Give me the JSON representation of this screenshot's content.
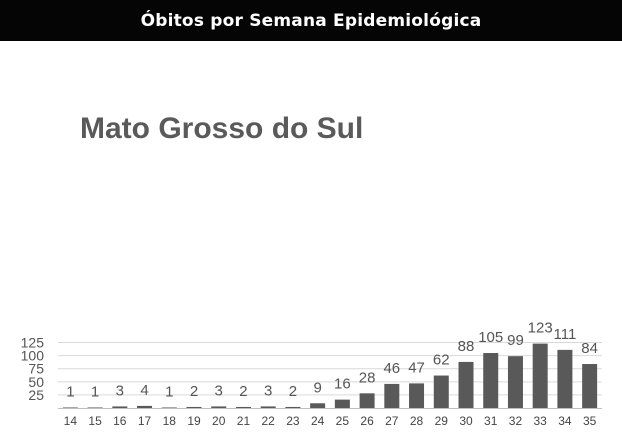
{
  "header": {
    "title": "Óbitos por Semana Epidemiológica"
  },
  "chart_data": {
    "type": "bar",
    "annotation": "Mato Grosso do Sul",
    "categories": [
      "14",
      "15",
      "16",
      "17",
      "18",
      "19",
      "20",
      "21",
      "22",
      "23",
      "24",
      "25",
      "26",
      "27",
      "28",
      "29",
      "30",
      "31",
      "32",
      "33",
      "34",
      "35"
    ],
    "values": [
      1,
      1,
      3,
      4,
      1,
      2,
      3,
      2,
      3,
      2,
      9,
      16,
      28,
      46,
      47,
      62,
      88,
      105,
      99,
      123,
      111,
      84
    ],
    "yticks": [
      25,
      50,
      75,
      100,
      125
    ],
    "ylim": [
      0,
      130
    ],
    "grid": true,
    "colors": {
      "bar": "#595959",
      "grid": "#d9d9d9",
      "axis": "#bfbfbf"
    }
  }
}
